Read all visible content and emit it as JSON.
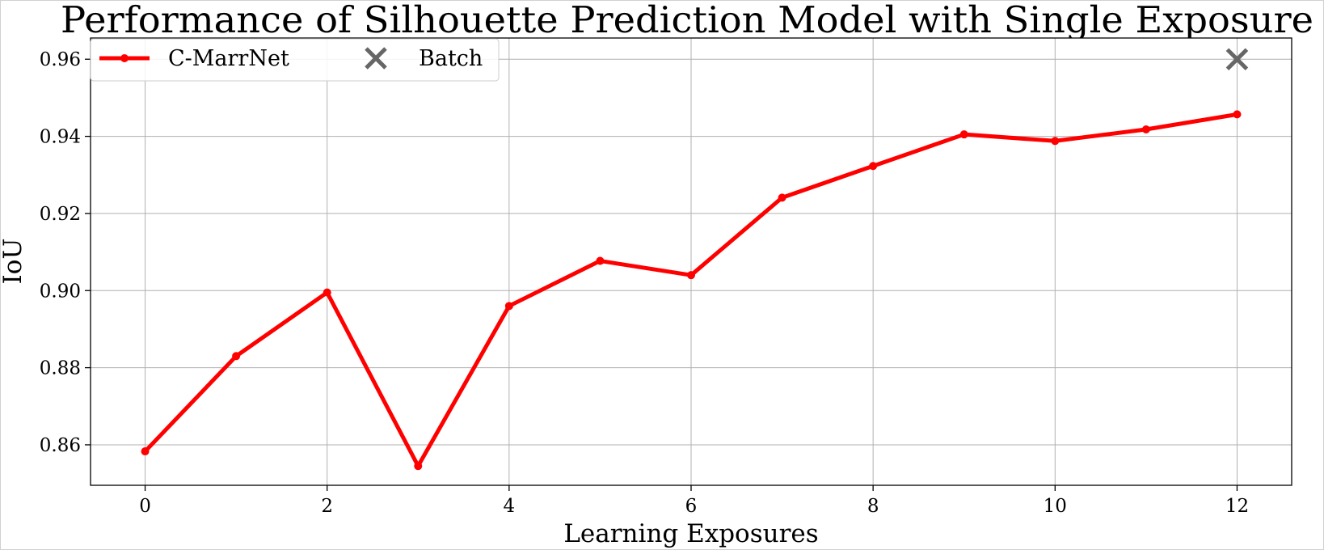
{
  "chart_data": {
    "type": "line",
    "title": "Performance of Silhouette Prediction Model with Single Exposure",
    "xlabel": "Learning Exposures",
    "ylabel": "IoU",
    "xlim": [
      -0.6,
      12.6
    ],
    "ylim": [
      0.8495,
      0.9655
    ],
    "xticks": [
      0,
      2,
      4,
      6,
      8,
      10,
      12
    ],
    "yticks": [
      0.86,
      0.88,
      0.9,
      0.92,
      0.94,
      0.96
    ],
    "xtick_labels": [
      "0",
      "2",
      "4",
      "6",
      "8",
      "10",
      "12"
    ],
    "ytick_labels": [
      "0.86",
      "0.88",
      "0.90",
      "0.92",
      "0.94",
      "0.96"
    ],
    "grid": true,
    "legend_position": "top-left",
    "series": [
      {
        "name": "C-MarrNet",
        "type": "line",
        "marker": "circle",
        "color": "#ff0000",
        "x": [
          0,
          1,
          2,
          3,
          4,
          5,
          6,
          7,
          8,
          9,
          10,
          11,
          12
        ],
        "y": [
          0.8583,
          0.883,
          0.8995,
          0.8545,
          0.896,
          0.9077,
          0.904,
          0.9241,
          0.9323,
          0.9405,
          0.9388,
          0.9418,
          0.9457
        ]
      },
      {
        "name": "Batch",
        "type": "scatter",
        "marker": "x",
        "color": "#666666",
        "x": [
          12
        ],
        "y": [
          0.96
        ]
      }
    ]
  }
}
